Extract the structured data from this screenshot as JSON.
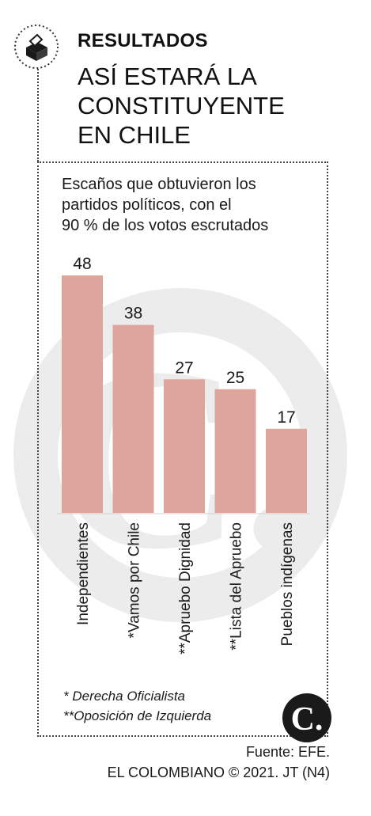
{
  "header": {
    "kicker": "RESULTADOS",
    "title_lines": [
      "ASÍ ESTARÁ LA",
      "CONSTITUYENTE",
      "EN CHILE"
    ],
    "icon": "ballot-box-icon"
  },
  "subtitle_lines": [
    "Escaños que obtuvieron los",
    "partidos políticos, con el",
    "90 % de los votos escrutados"
  ],
  "chart_data": {
    "type": "bar",
    "categories": [
      "Independientes",
      "*Vamos por Chile",
      "**Apruebo Dignidad",
      "**Lista del Apruebo",
      "Pueblos indígenas"
    ],
    "values": [
      48,
      38,
      27,
      25,
      17
    ],
    "ylim": [
      0,
      48
    ],
    "bar_color": "#dea59c",
    "value_labels": true,
    "grid": false
  },
  "notes": {
    "note1": "* Derecha Oficialista",
    "note2": "**Oposición de Izquierda"
  },
  "footer": {
    "source": "Fuente: EFE.",
    "credit": "EL COLOMBIANO © 2021. JT (N4)"
  },
  "logo": {
    "letter": "C.",
    "icon": "el-colombiano-logo"
  },
  "colors": {
    "watermark": "#ececec",
    "bar": "#dea59c",
    "text": "#1a1a1a"
  }
}
